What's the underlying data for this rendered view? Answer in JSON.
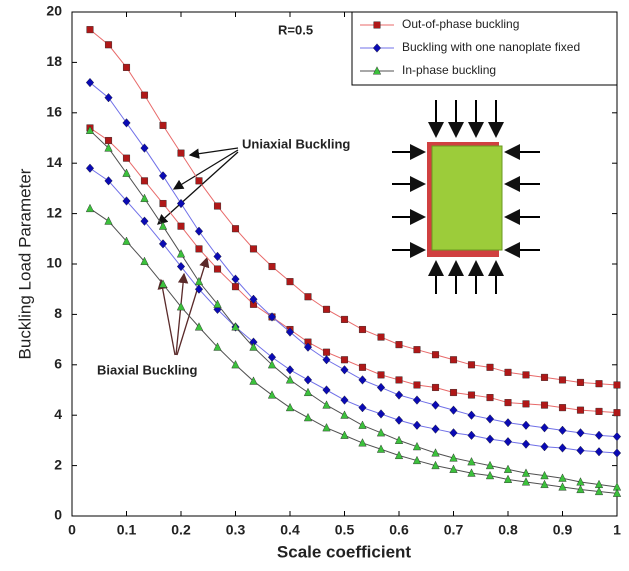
{
  "chart_data": {
    "type": "line",
    "x_label": "Scale coefficient",
    "y_label": "Buckling Load Parameter",
    "annotations": {
      "ratio": "R=0.5",
      "uniaxial": "Uniaxial Buckling",
      "biaxial": "Biaxial Buckling"
    },
    "x": [
      0.033,
      0.067,
      0.1,
      0.133,
      0.167,
      0.2,
      0.233,
      0.267,
      0.3,
      0.333,
      0.367,
      0.4,
      0.433,
      0.467,
      0.5,
      0.533,
      0.567,
      0.6,
      0.633,
      0.667,
      0.7,
      0.733,
      0.767,
      0.8,
      0.833,
      0.867,
      0.9,
      0.933,
      0.967,
      1
    ],
    "series": [
      {
        "name": "Out-of-phase buckling",
        "color": "#b01818",
        "line_color": "#e86a6a",
        "marker": "square",
        "uniaxial": [
          19.3,
          18.7,
          17.8,
          16.7,
          15.5,
          14.4,
          13.3,
          12.3,
          11.4,
          10.6,
          9.9,
          9.3,
          8.7,
          8.2,
          7.8,
          7.4,
          7.1,
          6.8,
          6.6,
          6.4,
          6.2,
          6.0,
          5.9,
          5.7,
          5.6,
          5.5,
          5.4,
          5.3,
          5.25,
          5.2
        ],
        "biaxial": [
          15.4,
          14.9,
          14.2,
          13.3,
          12.4,
          11.5,
          10.6,
          9.8,
          9.1,
          8.4,
          7.9,
          7.4,
          6.9,
          6.5,
          6.2,
          5.9,
          5.6,
          5.4,
          5.2,
          5.1,
          4.9,
          4.8,
          4.7,
          4.5,
          4.45,
          4.4,
          4.3,
          4.2,
          4.15,
          4.1
        ]
      },
      {
        "name": "Buckling with one nanoplate fixed",
        "color": "#0a0ab4",
        "line_color": "#7070e8",
        "marker": "diamond",
        "uniaxial": [
          17.2,
          16.6,
          15.6,
          14.6,
          13.5,
          12.4,
          11.3,
          10.3,
          9.4,
          8.6,
          7.9,
          7.3,
          6.7,
          6.2,
          5.8,
          5.4,
          5.1,
          4.8,
          4.6,
          4.4,
          4.2,
          4.0,
          3.85,
          3.7,
          3.6,
          3.5,
          3.4,
          3.3,
          3.2,
          3.15
        ],
        "biaxial": [
          13.8,
          13.3,
          12.5,
          11.7,
          10.8,
          9.9,
          9.0,
          8.2,
          7.5,
          6.9,
          6.3,
          5.8,
          5.4,
          5.0,
          4.6,
          4.3,
          4.05,
          3.8,
          3.6,
          3.45,
          3.3,
          3.2,
          3.05,
          2.95,
          2.85,
          2.75,
          2.7,
          2.6,
          2.55,
          2.5
        ]
      },
      {
        "name": "In-phase buckling",
        "color": "#3cc03c",
        "line_color": "#505050",
        "marker": "triangle",
        "uniaxial": [
          15.3,
          14.6,
          13.6,
          12.6,
          11.5,
          10.4,
          9.3,
          8.4,
          7.5,
          6.7,
          6.0,
          5.4,
          4.9,
          4.4,
          4.0,
          3.6,
          3.3,
          3.0,
          2.75,
          2.5,
          2.3,
          2.15,
          2.0,
          1.85,
          1.7,
          1.6,
          1.5,
          1.35,
          1.25,
          1.15
        ],
        "biaxial": [
          12.2,
          11.7,
          10.9,
          10.1,
          9.2,
          8.3,
          7.5,
          6.7,
          6.0,
          5.35,
          4.8,
          4.3,
          3.9,
          3.5,
          3.2,
          2.9,
          2.65,
          2.4,
          2.2,
          2.0,
          1.85,
          1.7,
          1.6,
          1.45,
          1.35,
          1.25,
          1.15,
          1.05,
          0.97,
          0.9
        ]
      }
    ],
    "xlim": [
      0,
      1
    ],
    "xticks": [
      0,
      0.1,
      0.2,
      0.3,
      0.4,
      0.5,
      0.6,
      0.7,
      0.8,
      0.9,
      1
    ],
    "ylim": [
      0,
      20
    ],
    "yticks": [
      0,
      2,
      4,
      6,
      8,
      10,
      12,
      14,
      16,
      18,
      20
    ],
    "grid": false,
    "legend": "upper right"
  }
}
